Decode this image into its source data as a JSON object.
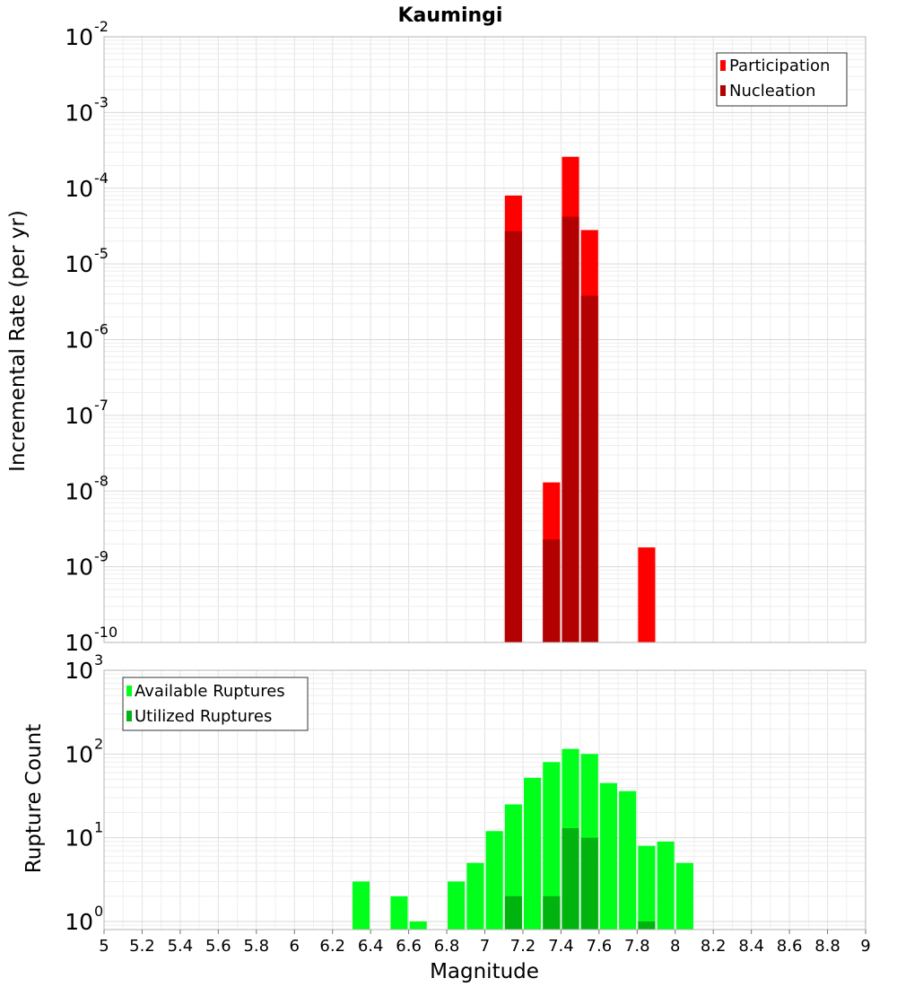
{
  "chart_data": [
    {
      "type": "bar",
      "title": "Kaumingi",
      "xlabel": "",
      "ylabel": "Incremental Rate (per yr)",
      "yscale": "log",
      "xlim": [
        5,
        9
      ],
      "ylim": [
        1e-10,
        0.01
      ],
      "ytick_exponents": [
        "-2",
        "-3",
        "-4",
        "-5",
        "-6",
        "-7",
        "-8",
        "-9",
        "-10"
      ],
      "grid": true,
      "legend_position": "top-right",
      "bar_width": 0.09,
      "series": [
        {
          "name": "Participation",
          "color": "#ff0000",
          "points": [
            {
              "x": 7.15,
              "y": 8e-05
            },
            {
              "x": 7.35,
              "y": 1.3e-08
            },
            {
              "x": 7.45,
              "y": 0.00026
            },
            {
              "x": 7.55,
              "y": 2.8e-05
            },
            {
              "x": 7.85,
              "y": 1.8e-09
            }
          ]
        },
        {
          "name": "Nucleation",
          "color": "#b30000",
          "points": [
            {
              "x": 7.15,
              "y": 2.7e-05
            },
            {
              "x": 7.35,
              "y": 2.3e-09
            },
            {
              "x": 7.45,
              "y": 4.2e-05
            },
            {
              "x": 7.55,
              "y": 3.8e-06
            }
          ]
        }
      ]
    },
    {
      "type": "bar",
      "title": "",
      "xlabel": "Magnitude",
      "ylabel": "Rupture Count",
      "yscale": "log",
      "xlim": [
        5,
        9
      ],
      "ylim": [
        0.8,
        1000
      ],
      "ytick_exponents": [
        "3",
        "2",
        "1",
        "0"
      ],
      "xticks": [
        "5",
        "5.2",
        "5.4",
        "5.6",
        "5.8",
        "6",
        "6.2",
        "6.4",
        "6.6",
        "6.8",
        "7",
        "7.2",
        "7.4",
        "7.6",
        "7.8",
        "8",
        "8.2",
        "8.4",
        "8.6",
        "8.8",
        "9"
      ],
      "grid": true,
      "legend_position": "top-left",
      "bar_width": 0.09,
      "series": [
        {
          "name": "Available Ruptures",
          "color": "#00ff1a",
          "points": [
            {
              "x": 6.35,
              "y": 3
            },
            {
              "x": 6.55,
              "y": 2
            },
            {
              "x": 6.65,
              "y": 1
            },
            {
              "x": 6.85,
              "y": 3
            },
            {
              "x": 6.95,
              "y": 5
            },
            {
              "x": 7.05,
              "y": 12
            },
            {
              "x": 7.15,
              "y": 25
            },
            {
              "x": 7.25,
              "y": 52
            },
            {
              "x": 7.35,
              "y": 80
            },
            {
              "x": 7.45,
              "y": 115
            },
            {
              "x": 7.55,
              "y": 100
            },
            {
              "x": 7.65,
              "y": 45
            },
            {
              "x": 7.75,
              "y": 36
            },
            {
              "x": 7.85,
              "y": 8
            },
            {
              "x": 7.95,
              "y": 9
            },
            {
              "x": 8.05,
              "y": 5
            }
          ]
        },
        {
          "name": "Utilized Ruptures",
          "color": "#00b30f",
          "points": [
            {
              "x": 7.15,
              "y": 2
            },
            {
              "x": 7.35,
              "y": 2
            },
            {
              "x": 7.45,
              "y": 13
            },
            {
              "x": 7.55,
              "y": 10
            },
            {
              "x": 7.85,
              "y": 1
            }
          ]
        }
      ]
    }
  ]
}
